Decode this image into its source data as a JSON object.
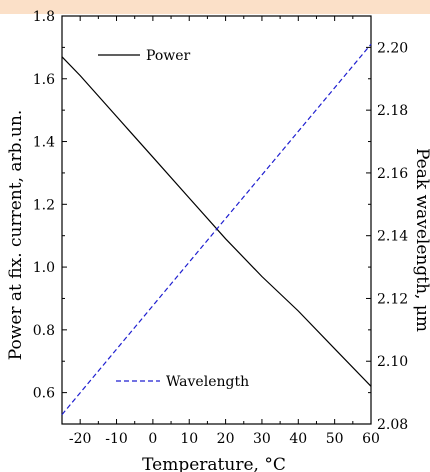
{
  "chart_data": {
    "type": "line",
    "xlabel": "Temperature, °C",
    "ylabel_left": "Power at fix. current, arb.un.",
    "ylabel_right": "Peak wavelength, μm",
    "xlim": [
      -25,
      60
    ],
    "ylim_left": [
      0.5,
      1.8
    ],
    "ylim_right": [
      2.08,
      2.21
    ],
    "x_ticks": [
      -20,
      -10,
      0,
      10,
      20,
      30,
      40,
      50,
      60
    ],
    "y_left_ticks": [
      0.6,
      0.8,
      1.0,
      1.2,
      1.4,
      1.6,
      1.8
    ],
    "y_right_ticks": [
      2.08,
      2.1,
      2.12,
      2.14,
      2.16,
      2.18,
      2.2
    ],
    "y_left_tick_labels": [
      "0.6",
      "0.8",
      "1.0",
      "1.2",
      "1.4",
      "1.6",
      "1.8"
    ],
    "y_right_tick_labels": [
      "2.08",
      "2.10",
      "2.12",
      "2.14",
      "2.16",
      "2.18",
      "2.20"
    ],
    "x_tick_labels": [
      "-20",
      "-10",
      "0",
      "10",
      "20",
      "30",
      "40",
      "50",
      "60"
    ],
    "series": [
      {
        "name": "Power",
        "axis": "left",
        "color": "#000000",
        "style": "solid",
        "x": [
          -25,
          -20,
          -10,
          0,
          10,
          20,
          30,
          40,
          50,
          60
        ],
        "values": [
          1.67,
          1.61,
          1.48,
          1.35,
          1.22,
          1.09,
          0.97,
          0.86,
          0.74,
          0.62
        ]
      },
      {
        "name": "Wavelength",
        "axis": "right",
        "color": "#1f1fd0",
        "style": "dashed",
        "x": [
          -25,
          60
        ],
        "values": [
          2.083,
          2.201
        ]
      }
    ],
    "legend": [
      {
        "label": "Power",
        "placement": "top-left"
      },
      {
        "label": "Wavelength",
        "placement": "bottom-left"
      }
    ],
    "grid": false
  },
  "colors": {
    "top_band": "#fbe0c8"
  }
}
